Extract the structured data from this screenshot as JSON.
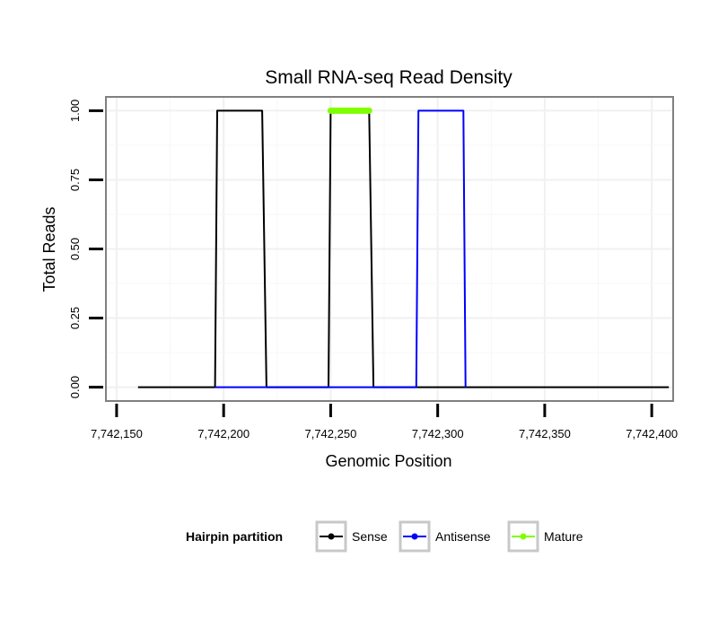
{
  "chart_data": {
    "type": "line",
    "title": "Small RNA-seq Read Density",
    "xlabel": "Genomic Position",
    "ylabel": "Total Reads",
    "xlim": [
      7742145,
      7742410
    ],
    "ylim": [
      -0.05,
      1.05
    ],
    "x_ticks": [
      {
        "value": 7742150,
        "label": "7,742,150"
      },
      {
        "value": 7742200,
        "label": "7,742,200"
      },
      {
        "value": 7742250,
        "label": "7,742,250"
      },
      {
        "value": 7742300,
        "label": "7,742,300"
      },
      {
        "value": 7742350,
        "label": "7,742,350"
      },
      {
        "value": 7742400,
        "label": "7,742,400"
      }
    ],
    "y_ticks": [
      {
        "value": 0,
        "label": "0.00"
      },
      {
        "value": 0.25,
        "label": "0.25"
      },
      {
        "value": 0.5,
        "label": "0.50"
      },
      {
        "value": 0.75,
        "label": "0.75"
      },
      {
        "value": 1,
        "label": "1.00"
      }
    ],
    "grid": true,
    "legend_position": "bottom",
    "legend_title": "Hairpin partition",
    "series": [
      {
        "name": "Sense",
        "color": "#000000",
        "width": 2,
        "x": [
          7742160,
          7742196,
          7742197,
          7742218,
          7742220,
          7742249,
          7742250,
          7742268,
          7742270,
          7742408
        ],
        "y": [
          0,
          0,
          1,
          1,
          0,
          0,
          1,
          1,
          0,
          0
        ]
      },
      {
        "name": "Antisense",
        "color": "#0000ff",
        "width": 2,
        "x": [
          7742196,
          7742220,
          7742249,
          7742270,
          7742290,
          7742291,
          7742312,
          7742313
        ],
        "y": [
          0,
          0,
          0,
          0,
          0,
          1,
          1,
          0
        ]
      },
      {
        "name": "Mature",
        "color": "#7fff00",
        "width": 7,
        "x": [
          7742250,
          7742268
        ],
        "y": [
          1,
          1
        ]
      }
    ]
  }
}
